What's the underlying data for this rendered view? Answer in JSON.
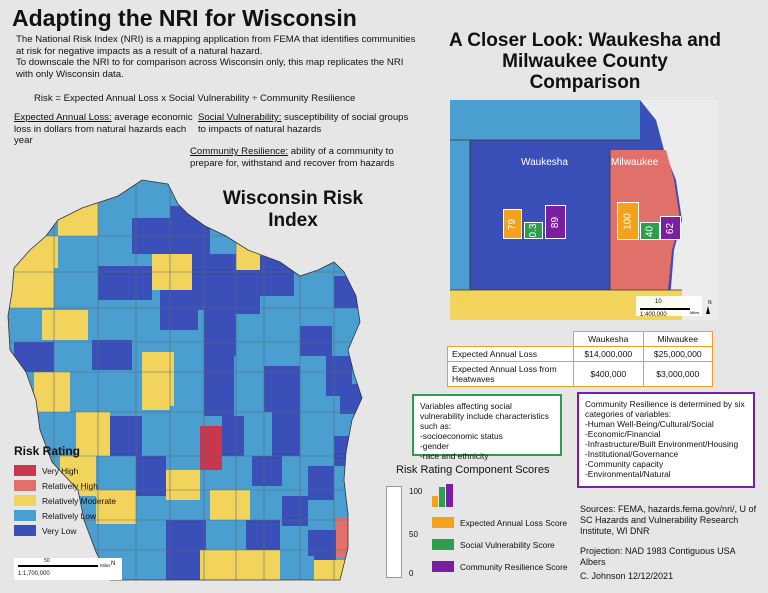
{
  "title": "Adapting the NRI for Wisconsin",
  "intro": {
    "line1": "The National Risk Index (NRI) is a mapping application from FEMA that identifies communities at risk for negative impacts as a result of a natural hazard.",
    "line2": "To downscale the NRI to for comparison across Wisconsin only, this map replicates the NRI with only Wisconsin data."
  },
  "formula": "Risk = Expected Annual Loss x Social Vulnerability ÷ Community Resilience",
  "definitions": {
    "eal_term": "Expected Annual Loss:",
    "eal_text": " average economic loss in dollars from natural hazards each year",
    "sv_term": "Social Vulnerability:",
    "sv_text": " susceptibility of social groups to impacts of natural hazards",
    "cr_term": "Community Resilience:",
    "cr_text": " ability of a community to prepare for, withstand and recover from hazards"
  },
  "wi_map_title": "Wisconsin Risk Index",
  "closer_title": "A Closer Look: Waukesha and Milwaukee County Comparison",
  "inset": {
    "waukesha_label": "Waukesha",
    "milwaukee_label": "Milwaukee",
    "waukesha_scores": [
      "79",
      "0.3",
      "89"
    ],
    "milwaukee_scores": [
      "100",
      "40",
      "62"
    ],
    "scale_num": "10",
    "scale_unit": "Miles",
    "ratio": "1:400,000",
    "north": "N"
  },
  "comparison_table": {
    "headers": [
      "",
      "Waukesha",
      "Milwaukee"
    ],
    "rows": [
      [
        "Expected Annual Loss",
        "$14,000,000",
        "$25,000,000"
      ],
      [
        "Expected Annual Loss from Heatwaves",
        "$400,000",
        "$3,000,000"
      ]
    ]
  },
  "sv_box": {
    "intro": "Variables affecting social vulnerability include characteristics such as:",
    "items": [
      "-socioeconomic status",
      "-gender",
      "-race and ethnicity"
    ]
  },
  "cr_box": {
    "intro": "Community Resilience is determined by six categories of variables:",
    "items": [
      "-Human Well-Being/Cultural/Social",
      "-Economic/Financial",
      "-Infrastructure/Built Environment/Housing",
      "-Institutional/Governance",
      "-Community capacity",
      "-Environmental/Natural"
    ]
  },
  "risk_legend": {
    "title": "Risk Rating",
    "items": [
      {
        "label": "Very High",
        "color": "#c8374d"
      },
      {
        "label": "Relatively High",
        "color": "#e2706a"
      },
      {
        "label": "Relatively Moderate",
        "color": "#f2d45c"
      },
      {
        "label": "Relatively Low",
        "color": "#4a9ed0"
      },
      {
        "label": "Very Low",
        "color": "#3a4fb8"
      }
    ]
  },
  "scale_main": {
    "num": "50",
    "unit": "Miles",
    "ratio": "1:1,700,000",
    "north": "N"
  },
  "component_legend": {
    "title": "Risk Rating Component Scores",
    "axis": [
      "100",
      "50",
      "0"
    ],
    "items": [
      {
        "label": "Expected Annual Loss Score",
        "color": "#f4a11c"
      },
      {
        "label": "Social Vulnerability Score",
        "color": "#2e9e4e"
      },
      {
        "label": "Community Resilience Score",
        "color": "#7b1fa2"
      }
    ]
  },
  "sources": "Sources: FEMA, hazards.fema.gov/nri/, U of SC Hazards and Vulnerability Research Institute, WI DNR",
  "projection": "Projection: NAD 1983 Contiguous USA Albers",
  "credit": "C. Johnson 12/12/2021",
  "colors": {
    "very_high": "#c8374d",
    "relatively_high": "#e2706a",
    "moderate": "#f2d45c",
    "low": "#4a9ed0",
    "very_low": "#3a4fb8",
    "eal": "#f4a11c",
    "sv": "#2e9e4e",
    "cr": "#7b1fa2"
  }
}
